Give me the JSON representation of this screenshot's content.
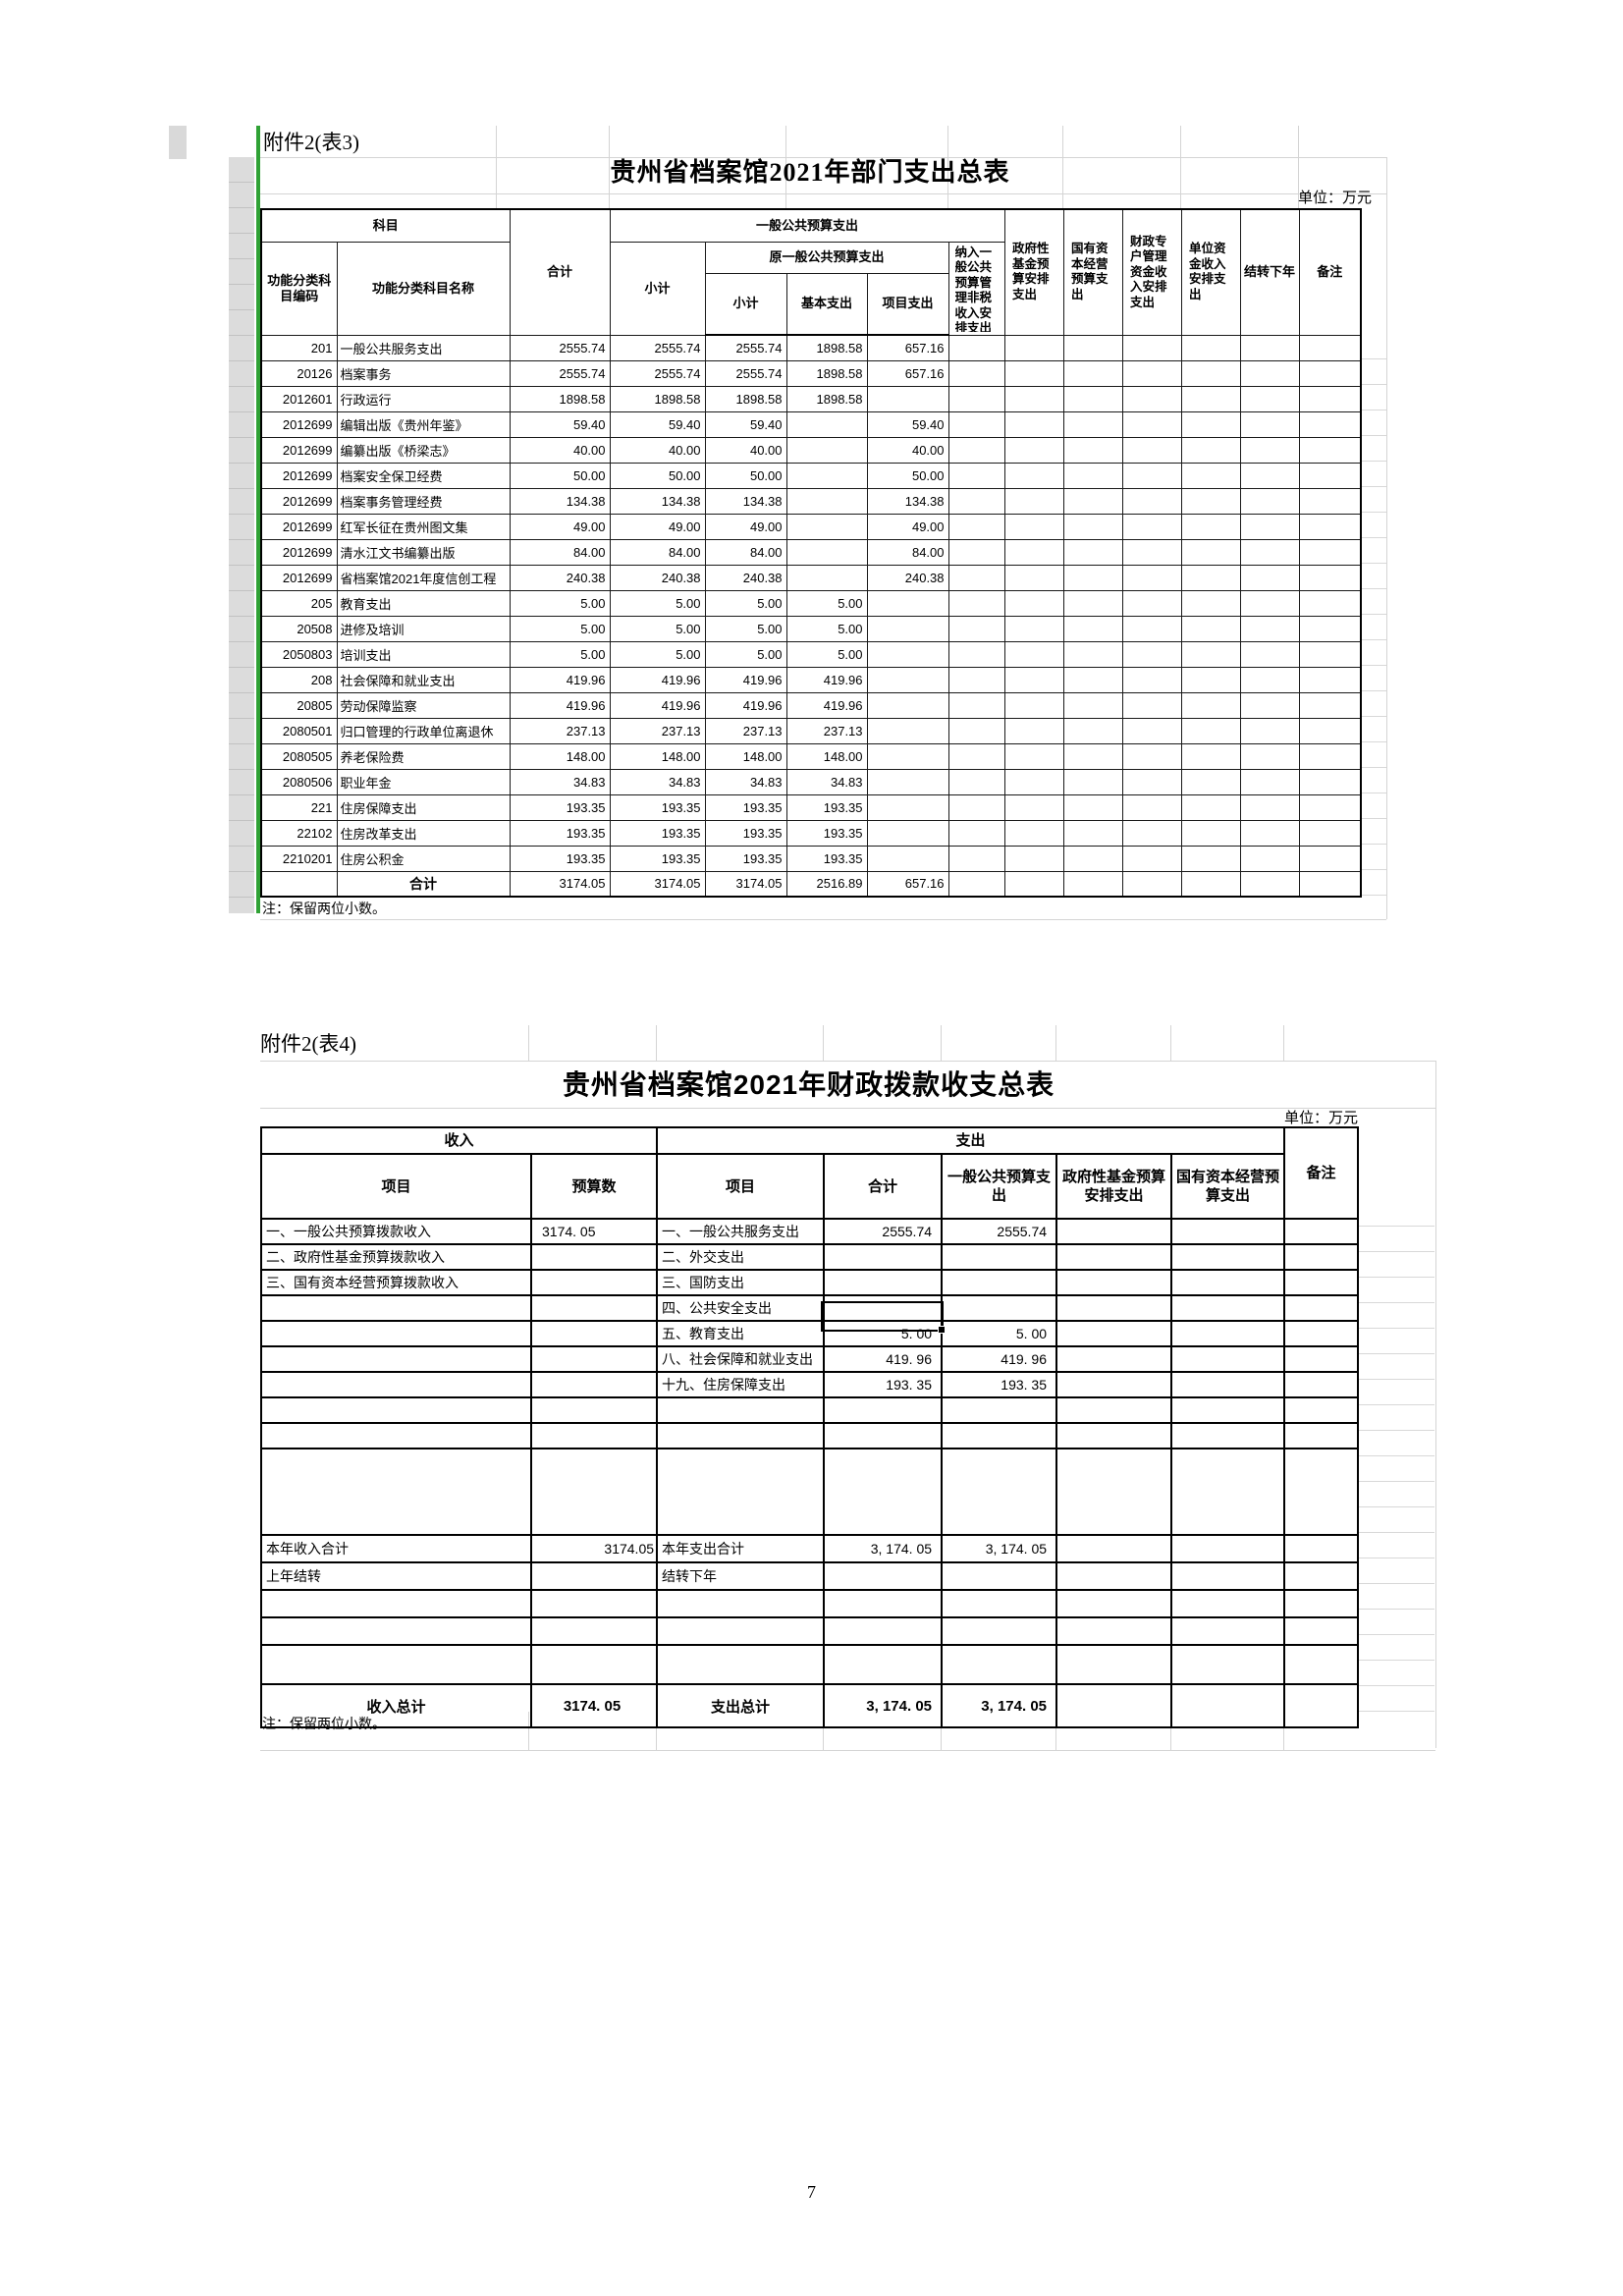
{
  "colors": {
    "green_marker": "#2fa235",
    "gray_band": "#dcdcdc",
    "grid_faint": "#d4d4d4",
    "border": "#000000"
  },
  "page": {
    "number": "7"
  },
  "table3": {
    "attachment": "附件2(表3)",
    "title": "贵州省档案馆2021年部门支出总表",
    "unit": "单位：万元",
    "note": "注：保留两位小数。",
    "headers": {
      "subject": "科目",
      "code": "功能分类科目编码",
      "name": "功能分类科目名称",
      "total": "合计",
      "general_public_budget": "一般公共预算支出",
      "subtotal": "小计",
      "original_general_budget": "原一般公共预算支出",
      "subtotal2": "小计",
      "basic_expense": "基本支出",
      "project_expense": "项目支出",
      "non_tax_income": "纳入一般公共预算管理非税收入安排支出",
      "gov_fund_budget": "政府性基金预算安排支出",
      "state_capital_budget": "国有资本经营预算支出",
      "fiscal_account_fund": "财政专户管理资金收入安排支出",
      "unit_fund": "单位资金收入安排支出",
      "carry_forward": "结转下年",
      "remark": "备注"
    },
    "rows": [
      {
        "code": "201",
        "name": "一般公共服务支出",
        "total": "2555.74",
        "subtotal": "2555.74",
        "subtotal2": "2555.74",
        "basic": "1898.58",
        "project": "657.16"
      },
      {
        "code": "20126",
        "name": "档案事务",
        "total": "2555.74",
        "subtotal": "2555.74",
        "subtotal2": "2555.74",
        "basic": "1898.58",
        "project": "657.16"
      },
      {
        "code": "2012601",
        "name": "行政运行",
        "total": "1898.58",
        "subtotal": "1898.58",
        "subtotal2": "1898.58",
        "basic": "1898.58",
        "project": ""
      },
      {
        "code": "2012699",
        "name": "编辑出版《贵州年鉴》",
        "total": "59.40",
        "subtotal": "59.40",
        "subtotal2": "59.40",
        "basic": "",
        "project": "59.40"
      },
      {
        "code": "2012699",
        "name": "编纂出版《桥梁志》",
        "total": "40.00",
        "subtotal": "40.00",
        "subtotal2": "40.00",
        "basic": "",
        "project": "40.00"
      },
      {
        "code": "2012699",
        "name": "档案安全保卫经费",
        "total": "50.00",
        "subtotal": "50.00",
        "subtotal2": "50.00",
        "basic": "",
        "project": "50.00"
      },
      {
        "code": "2012699",
        "name": "档案事务管理经费",
        "total": "134.38",
        "subtotal": "134.38",
        "subtotal2": "134.38",
        "basic": "",
        "project": "134.38"
      },
      {
        "code": "2012699",
        "name": "红军长征在贵州图文集",
        "total": "49.00",
        "subtotal": "49.00",
        "subtotal2": "49.00",
        "basic": "",
        "project": "49.00"
      },
      {
        "code": "2012699",
        "name": "清水江文书编纂出版",
        "total": "84.00",
        "subtotal": "84.00",
        "subtotal2": "84.00",
        "basic": "",
        "project": "84.00"
      },
      {
        "code": "2012699",
        "name": "省档案馆2021年度信创工程",
        "total": "240.38",
        "subtotal": "240.38",
        "subtotal2": "240.38",
        "basic": "",
        "project": "240.38"
      },
      {
        "code": "205",
        "name": "教育支出",
        "total": "5.00",
        "subtotal": "5.00",
        "subtotal2": "5.00",
        "basic": "5.00",
        "project": ""
      },
      {
        "code": "20508",
        "name": "进修及培训",
        "total": "5.00",
        "subtotal": "5.00",
        "subtotal2": "5.00",
        "basic": "5.00",
        "project": ""
      },
      {
        "code": "2050803",
        "name": "培训支出",
        "total": "5.00",
        "subtotal": "5.00",
        "subtotal2": "5.00",
        "basic": "5.00",
        "project": ""
      },
      {
        "code": "208",
        "name": "社会保障和就业支出",
        "total": "419.96",
        "subtotal": "419.96",
        "subtotal2": "419.96",
        "basic": "419.96",
        "project": ""
      },
      {
        "code": "20805",
        "name": "劳动保障监察",
        "total": "419.96",
        "subtotal": "419.96",
        "subtotal2": "419.96",
        "basic": "419.96",
        "project": ""
      },
      {
        "code": "2080501",
        "name": "归口管理的行政单位离退休",
        "total": "237.13",
        "subtotal": "237.13",
        "subtotal2": "237.13",
        "basic": "237.13",
        "project": ""
      },
      {
        "code": "2080505",
        "name": "养老保险费",
        "total": "148.00",
        "subtotal": "148.00",
        "subtotal2": "148.00",
        "basic": "148.00",
        "project": ""
      },
      {
        "code": "2080506",
        "name": "职业年金",
        "total": "34.83",
        "subtotal": "34.83",
        "subtotal2": "34.83",
        "basic": "34.83",
        "project": ""
      },
      {
        "code": "221",
        "name": "住房保障支出",
        "total": "193.35",
        "subtotal": "193.35",
        "subtotal2": "193.35",
        "basic": "193.35",
        "project": ""
      },
      {
        "code": "22102",
        "name": "住房改革支出",
        "total": "193.35",
        "subtotal": "193.35",
        "subtotal2": "193.35",
        "basic": "193.35",
        "project": ""
      },
      {
        "code": "2210201",
        "name": "住房公积金",
        "total": "193.35",
        "subtotal": "193.35",
        "subtotal2": "193.35",
        "basic": "193.35",
        "project": ""
      },
      {
        "_cls": "total",
        "code": "",
        "name": "合计",
        "total": "3174.05",
        "subtotal": "3174.05",
        "subtotal2": "3174.05",
        "basic": "2516.89",
        "project": "657.16"
      }
    ]
  },
  "table4": {
    "attachment": "附件2(表4)",
    "title": "贵州省档案馆2021年财政拨款收支总表",
    "unit": "单位：万元",
    "note": "注：保留两位小数。",
    "headers": {
      "income": "收入",
      "expense": "支出",
      "remark": "备注",
      "income_item": "项目",
      "budget_number": "预算数",
      "expense_item": "项目",
      "total": "合计",
      "general_public_budget": "一般公共预算支出",
      "gov_fund_budget": "政府性基金预算安排支出",
      "state_capital_budget": "国有资本经营预算支出"
    },
    "selected_cell": {
      "row_label": "五、教育支出",
      "column": "合计",
      "value": "5. 00"
    },
    "rows": [
      {
        "in_item": "一、一般公共预算拨款收入",
        "amount": "3174. 05",
        "ex_item": "一、一般公共服务支出",
        "total": "2555.74",
        "general": "2555.74",
        "gov_fund": "",
        "state_capital": "",
        "remark": ""
      },
      {
        "in_item": "二、政府性基金预算拨款收入",
        "amount": "",
        "ex_item": "二、外交支出",
        "total": "",
        "general": "",
        "gov_fund": "",
        "state_capital": "",
        "remark": ""
      },
      {
        "in_item": "三、国有资本经营预算拨款收入",
        "amount": "",
        "ex_item": "三、国防支出",
        "total": "",
        "general": "",
        "gov_fund": "",
        "state_capital": "",
        "remark": ""
      },
      {
        "in_item": "",
        "amount": "",
        "ex_item": "四、公共安全支出",
        "total": "",
        "general": "",
        "gov_fund": "",
        "state_capital": "",
        "remark": ""
      },
      {
        "in_item": "",
        "amount": "",
        "ex_item": "五、教育支出",
        "total": "5. 00",
        "general": "5. 00",
        "gov_fund": "",
        "state_capital": "",
        "remark": ""
      },
      {
        "in_item": "",
        "amount": "",
        "ex_item": "八、社会保障和就业支出",
        "total": "419. 96",
        "general": "419. 96",
        "gov_fund": "",
        "state_capital": "",
        "remark": ""
      },
      {
        "in_item": "",
        "amount": "",
        "ex_item": "十九、住房保障支出",
        "total": "193. 35",
        "general": "193. 35",
        "gov_fund": "",
        "state_capital": "",
        "remark": ""
      },
      {
        "in_item": "",
        "amount": "",
        "ex_item": "",
        "total": "",
        "general": "",
        "gov_fund": "",
        "state_capital": "",
        "remark": ""
      },
      {
        "in_item": "",
        "amount": "",
        "ex_item": "",
        "total": "",
        "general": "",
        "gov_fund": "",
        "state_capital": "",
        "remark": ""
      },
      {
        "_cls": "tall",
        "in_item": "",
        "amount": "",
        "ex_item": "",
        "total": "",
        "general": "",
        "gov_fund": "",
        "state_capital": "",
        "remark": ""
      },
      {
        "_cls": "subtotal",
        "in_item": "本年收入合计",
        "amount": "3174.05",
        "ex_item": "本年支出合计",
        "total": "3, 174. 05",
        "general": "3, 174. 05",
        "gov_fund": "",
        "state_capital": "",
        "remark": ""
      },
      {
        "_cls": "r28",
        "in_item": "上年结转",
        "amount": "",
        "ex_item": "结转下年",
        "total": "",
        "general": "",
        "gov_fund": "",
        "state_capital": "",
        "remark": ""
      },
      {
        "_cls": "r28",
        "in_item": "",
        "amount": "",
        "ex_item": "",
        "total": "",
        "general": "",
        "gov_fund": "",
        "state_capital": "",
        "remark": ""
      },
      {
        "_cls": "r28",
        "in_item": "",
        "amount": "",
        "ex_item": "",
        "total": "",
        "general": "",
        "gov_fund": "",
        "state_capital": "",
        "remark": ""
      },
      {
        "_cls": "gap",
        "in_item": "",
        "amount": "",
        "ex_item": "",
        "total": "",
        "general": "",
        "gov_fund": "",
        "state_capital": "",
        "remark": ""
      },
      {
        "_cls": "grand",
        "in_item": "收入总计",
        "amount": "3174. 05",
        "ex_item": "支出总计",
        "total": "3, 174. 05",
        "general": "3, 174. 05",
        "gov_fund": "",
        "state_capital": "",
        "remark": ""
      }
    ]
  }
}
